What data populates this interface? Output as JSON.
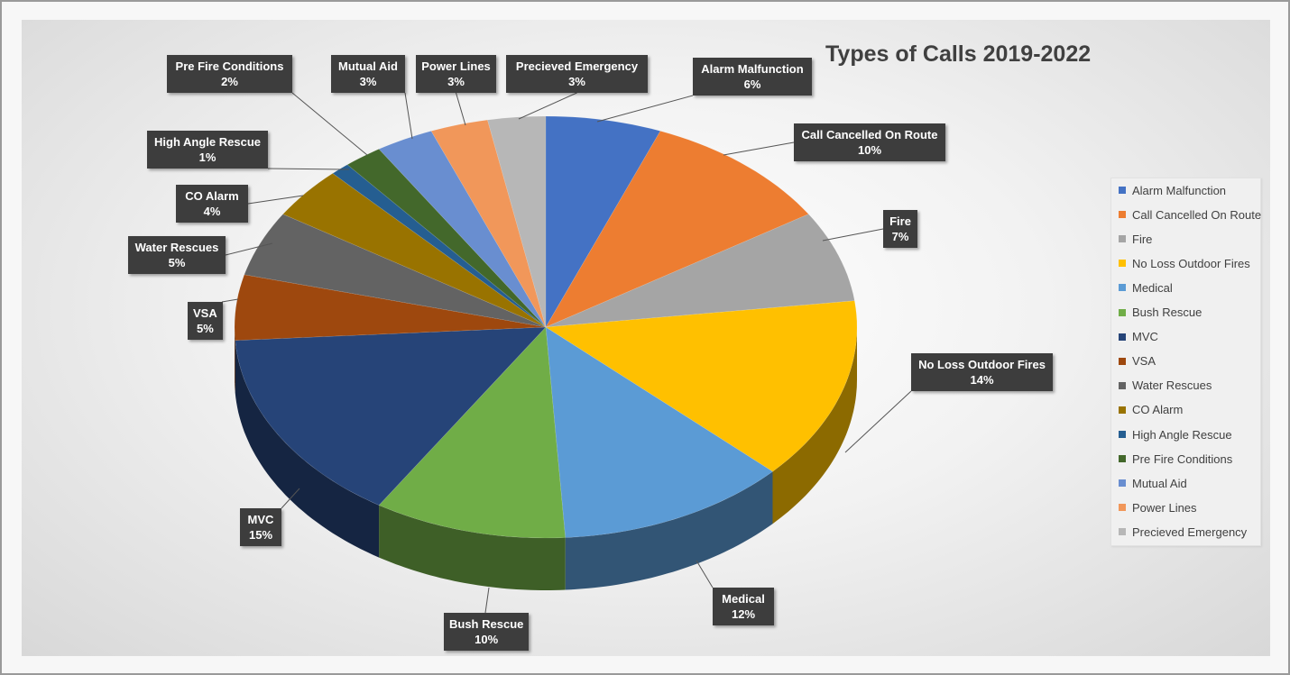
{
  "chart_data": {
    "type": "pie",
    "title": "Types of Calls 2019-2022",
    "slices": [
      {
        "label": "Alarm Malfunction",
        "value": 6,
        "value_label": "6%",
        "color": "#4472c4"
      },
      {
        "label": "Call Cancelled On Route",
        "value": 10,
        "value_label": "10%",
        "color": "#ed7d31"
      },
      {
        "label": "Fire",
        "value": 7,
        "value_label": "7%",
        "color": "#a5a5a5"
      },
      {
        "label": "No Loss Outdoor Fires",
        "value": 14,
        "value_label": "14%",
        "color": "#ffc000"
      },
      {
        "label": "Medical",
        "value": 12,
        "value_label": "12%",
        "color": "#5b9bd5"
      },
      {
        "label": "Bush Rescue",
        "value": 10,
        "value_label": "10%",
        "color": "#70ad47"
      },
      {
        "label": "MVC",
        "value": 15,
        "value_label": "15%",
        "color": "#264478"
      },
      {
        "label": "VSA",
        "value": 5,
        "value_label": "5%",
        "color": "#9e480e"
      },
      {
        "label": "Water Rescues",
        "value": 5,
        "value_label": "5%",
        "color": "#636363"
      },
      {
        "label": "CO Alarm",
        "value": 4,
        "value_label": "4%",
        "color": "#997300"
      },
      {
        "label": "High Angle Rescue",
        "value": 1,
        "value_label": "1%",
        "color": "#255e91"
      },
      {
        "label": "Pre Fire Conditions",
        "value": 2,
        "value_label": "2%",
        "color": "#43682b"
      },
      {
        "label": "Mutual Aid",
        "value": 3,
        "value_label": "3%",
        "color": "#698ed0"
      },
      {
        "label": "Power Lines",
        "value": 3,
        "value_label": "3%",
        "color": "#f1975a"
      },
      {
        "label": "Precieved Emergency",
        "value": 3,
        "value_label": "3%",
        "color": "#b7b7b7"
      }
    ],
    "legend_position": "right",
    "style": "3d-pie"
  }
}
